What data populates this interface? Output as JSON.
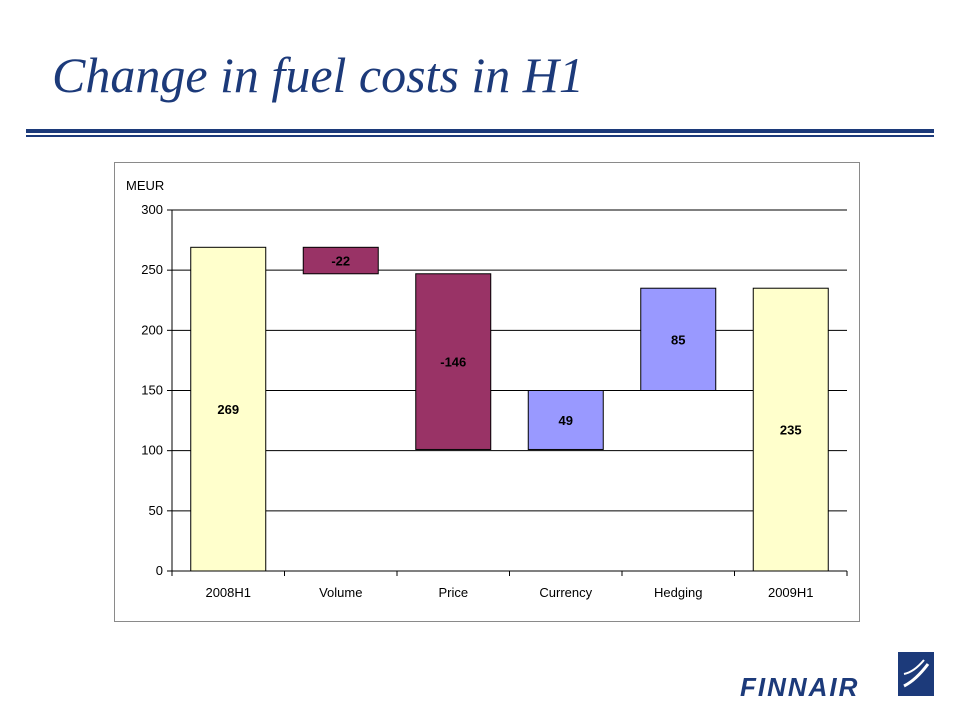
{
  "slide": {
    "title": "Change in fuel costs in H1",
    "logo_text": "FINNAIR",
    "brand_color": "#1c3a7a"
  },
  "chart_data": {
    "type": "bar",
    "subtype": "waterfall",
    "ylabel": "MEUR",
    "ylim": [
      0,
      300
    ],
    "yticks": [
      0,
      50,
      100,
      150,
      200,
      250,
      300
    ],
    "grid": true,
    "categories": [
      "2008H1",
      "Volume",
      "Price",
      "Currency",
      "Hedging",
      "2009H1"
    ],
    "bars": [
      {
        "category": "2008H1",
        "base": 0,
        "top": 269,
        "label": "269",
        "color": "#ffffcc"
      },
      {
        "category": "Volume",
        "base": 247,
        "top": 269,
        "label": "-22",
        "color": "#993366"
      },
      {
        "category": "Price",
        "base": 101,
        "top": 247,
        "label": "-146",
        "color": "#993366"
      },
      {
        "category": "Currency",
        "base": 101,
        "top": 150,
        "label": "49",
        "color": "#9999ff"
      },
      {
        "category": "Hedging",
        "base": 150,
        "top": 235,
        "label": "85",
        "color": "#9999ff"
      },
      {
        "category": "2009H1",
        "base": 0,
        "top": 235,
        "label": "235",
        "color": "#ffffcc"
      }
    ]
  }
}
